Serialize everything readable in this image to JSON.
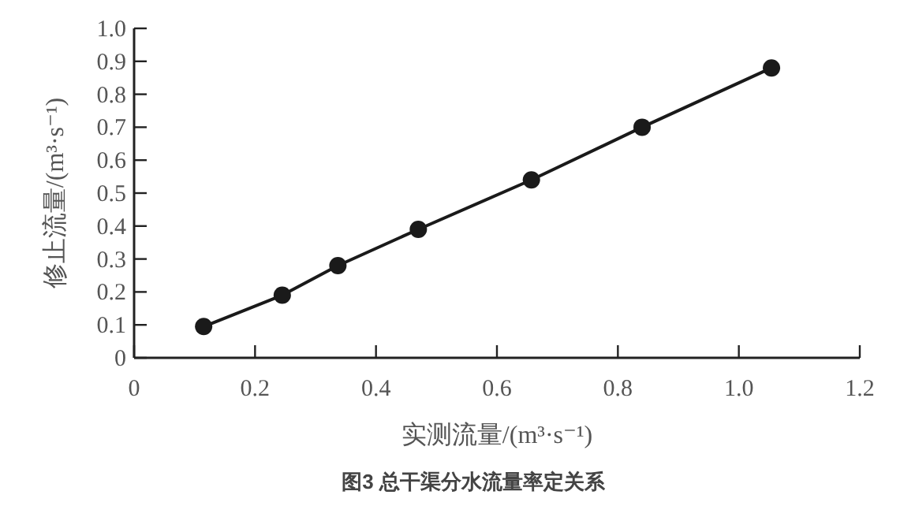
{
  "chart_data": {
    "type": "line",
    "title": "图3 总干渠分水流量率定关系",
    "xlabel": "实测流量/(m³·s⁻¹)",
    "ylabel": "修止流量/(m³·s⁻¹)",
    "x": [
      0.115,
      0.245,
      0.337,
      0.47,
      0.657,
      0.84,
      1.054
    ],
    "series": [
      {
        "color": "#1a1a1a",
        "values": [
          0.095,
          0.19,
          0.28,
          0.39,
          0.54,
          0.7,
          0.88
        ]
      }
    ],
    "xlim": [
      0,
      1.2
    ],
    "ylim": [
      0,
      1.0
    ],
    "xticks": [
      0,
      0.2,
      0.4,
      0.6,
      0.8,
      {
        "value": 1,
        "label": "1.0"
      },
      1.2
    ],
    "yticks": [
      0,
      0.1,
      0.2,
      0.3,
      0.4,
      0.5,
      0.6,
      0.7,
      0.8,
      0.9,
      {
        "value": 1,
        "label": "1.0"
      }
    ],
    "marker": "circle",
    "line_style": "solid",
    "grid": false
  }
}
